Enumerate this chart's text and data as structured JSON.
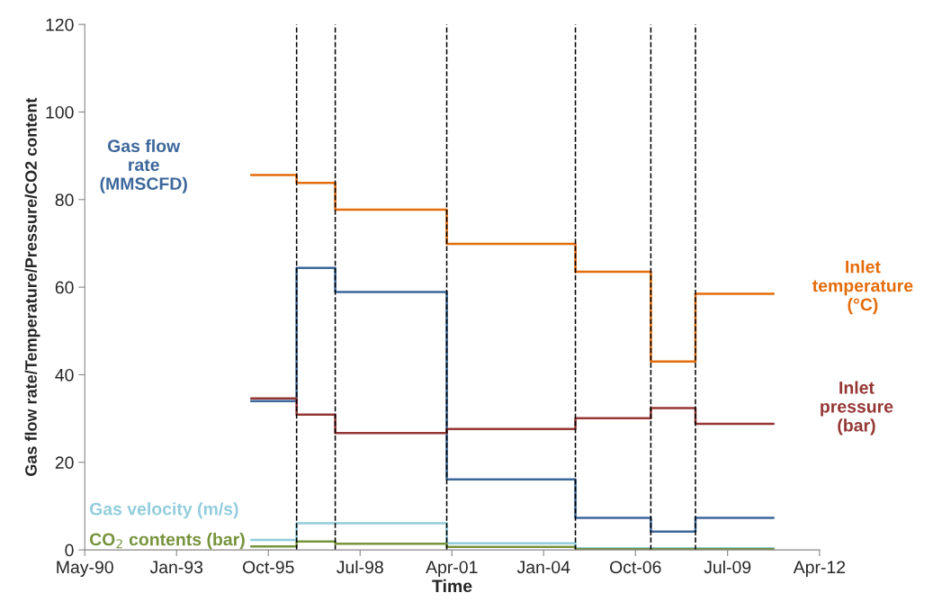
{
  "chart_data": {
    "type": "step",
    "xlabel": "Time",
    "ylabel": "Gas flow rate/Temperature/Pressure/CO2 content",
    "x": [
      "1995-04-18",
      "1996-08-25",
      "1997-10-20",
      "2001-02-16",
      "2004-12-19",
      "2007-03-21",
      "2008-07-19",
      "2010-11-17"
    ],
    "series": [
      {
        "name": "Inlet\ntemperature\n(°C)",
        "color": "#e46c0a",
        "values": [
          85.6,
          83.8,
          77.7,
          69.9,
          63.5,
          43.0,
          58.5,
          58.5
        ]
      },
      {
        "name": "Gas flow\nrate\n(MMSCFD)",
        "color": "#3c679b",
        "values": [
          34.0,
          64.4,
          58.9,
          16.1,
          7.3,
          4.2,
          7.3,
          7.3
        ]
      },
      {
        "name": "Inlet\npressure\n(bar)",
        "color": "#953735",
        "values": [
          34.6,
          30.9,
          26.7,
          27.6,
          30.1,
          32.4,
          28.8,
          28.8
        ]
      },
      {
        "name": "Gas velocity (m/s)",
        "color": "#93cddd",
        "values": [
          2.3,
          6.1,
          6.1,
          1.5,
          0.4,
          0.4,
          0.4,
          0.4
        ]
      },
      {
        "name": "CO$_{2}$ contents (bar)",
        "color": "#77933c",
        "values": [
          0.8,
          1.9,
          1.4,
          0.7,
          0.2,
          0.2,
          0.2,
          0.2
        ]
      }
    ],
    "ref_lines": [
      {
        "axis": "x",
        "value": "1996-08-25",
        "color": "#000000",
        "line_style": "dashed"
      },
      {
        "axis": "x",
        "value": "1997-10-20",
        "color": "#000000",
        "line_style": "dashed"
      },
      {
        "axis": "x",
        "value": "2001-02-16",
        "color": "#000000",
        "line_style": "dashed"
      },
      {
        "axis": "x",
        "value": "2004-12-19",
        "color": "#000000",
        "line_style": "dashed"
      },
      {
        "axis": "x",
        "value": "2007-03-21",
        "color": "#000000",
        "line_style": "dashed"
      },
      {
        "axis": "x",
        "value": "2008-07-19",
        "color": "#000000",
        "line_style": "dashed"
      }
    ],
    "xlim": [
      "1990-05-01",
      "2012-04-01"
    ],
    "xticks": [
      {
        "value": "1990-05-01",
        "label": "May-90"
      },
      {
        "value": "1993-01-25",
        "label": "Jan-93"
      },
      {
        "value": "1995-10-22",
        "label": "Oct-95"
      },
      {
        "value": "1998-07-18",
        "label": "Jul-98"
      },
      {
        "value": "2001-04-13",
        "label": "Apr-01"
      },
      {
        "value": "2004-01-08",
        "label": "Jan-04"
      },
      {
        "value": "2006-10-04",
        "label": "Oct-06"
      },
      {
        "value": "2009-07-04",
        "label": "Jul-09"
      },
      {
        "value": "2012-04-01",
        "label": "Apr-12"
      }
    ],
    "ylim": [
      0,
      120
    ],
    "yticks": [
      0,
      20,
      40,
      60,
      80,
      100,
      120
    ],
    "grid": false,
    "line_style": "solid",
    "marker": "none"
  }
}
